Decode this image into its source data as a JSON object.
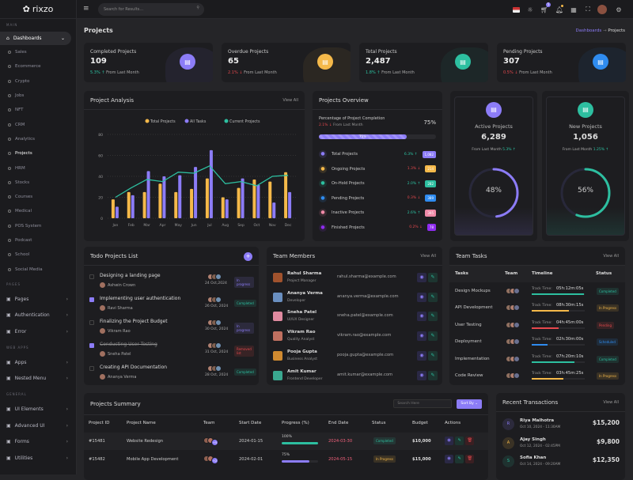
{
  "app": {
    "logo": "rixzo"
  },
  "topbar": {
    "search_placeholder": "Search for Results...",
    "cart_count": "5"
  },
  "sidebar": {
    "main_label": "MAIN",
    "dashboards": "Dashboards",
    "subitems": [
      "Sales",
      "Ecommerce",
      "Crypto",
      "Jobs",
      "NFT",
      "CRM",
      "Analytics",
      "Projects",
      "HRM",
      "Stocks",
      "Courses",
      "Medical",
      "POS System",
      "Podcast",
      "School",
      "Social Media"
    ],
    "active": "Projects",
    "sections": [
      {
        "label": "PAGES",
        "items": [
          {
            "label": "Pages",
            "icon": "file-icon"
          },
          {
            "label": "Authentication",
            "icon": "lock-icon"
          },
          {
            "label": "Error",
            "icon": "error-icon"
          }
        ]
      },
      {
        "label": "WEB APPS",
        "items": [
          {
            "label": "Apps",
            "icon": "grid-icon"
          },
          {
            "label": "Nested Menu",
            "icon": "gear-icon"
          }
        ]
      },
      {
        "label": "GENERAL",
        "items": [
          {
            "label": "UI Elements",
            "icon": "layout-icon"
          },
          {
            "label": "Advanced UI",
            "icon": "wand-icon"
          },
          {
            "label": "Forms",
            "icon": "form-icon"
          },
          {
            "label": "Utilities",
            "icon": "tool-icon"
          }
        ]
      }
    ]
  },
  "page": {
    "title": "Projects",
    "breadcrumb": [
      "Dashboards",
      "Projects"
    ]
  },
  "stats": [
    {
      "label": "Completed Projects",
      "value": "109",
      "change": "5.3%",
      "dir": "up",
      "note": "From Last Month",
      "color": "#8c7cf7"
    },
    {
      "label": "Overdue Projects",
      "value": "65",
      "change": "2.1%",
      "dir": "down",
      "note": "From Last Month",
      "color": "#f5b94a"
    },
    {
      "label": "Total Projects",
      "value": "2,487",
      "change": "1.8%",
      "dir": "up",
      "note": "From Last Month",
      "color": "#2dbfa0"
    },
    {
      "label": "Pending Projects",
      "value": "307",
      "change": "0.5%",
      "dir": "down",
      "note": "From Last Month",
      "color": "#2f8cf0"
    }
  ],
  "analysis": {
    "title": "Project Analysis",
    "view_all": "View All"
  },
  "chart_data": {
    "type": "bar",
    "categories": [
      "Jan",
      "Feb",
      "Mar",
      "Apr",
      "May",
      "Jun",
      "Jul",
      "Aug",
      "Sep",
      "Oct",
      "Nov",
      "Dec"
    ],
    "series": [
      {
        "name": "Total Projects",
        "type": "bar",
        "color": "#f5b94a",
        "values": [
          18,
          25,
          25,
          33,
          25,
          28,
          38,
          20,
          29,
          37,
          35,
          44
        ]
      },
      {
        "name": "All Tasks",
        "type": "bar",
        "color": "#8c7cf7",
        "values": [
          11,
          22,
          45,
          40,
          41,
          49,
          65,
          18,
          38,
          32,
          15,
          25
        ]
      },
      {
        "name": "Current Projects",
        "type": "line",
        "color": "#2dbfa0",
        "values": [
          20,
          29,
          37,
          35,
          44,
          43,
          50,
          33,
          35,
          31,
          40,
          41
        ]
      }
    ],
    "yticks": [
      "0",
      "20",
      "40",
      "60",
      "80"
    ],
    "ylim": [
      0,
      80
    ],
    "legend": "top",
    "grid": true
  },
  "overview": {
    "title": "Projects Overview",
    "completion_label": "Percentage of Project Completion",
    "completion": "75%",
    "completion_fraction": 0.75,
    "change": "2.1%",
    "note": "From Last Month",
    "rows": [
      {
        "label": "Total Projects",
        "change": "6.3%",
        "dir": "up",
        "badge": "1,082",
        "color": "#8c7cf7",
        "icon": "folder-icon"
      },
      {
        "label": "Ongoing Projects",
        "change": "1.3%",
        "dir": "down",
        "badge": "214",
        "color": "#f5b94a",
        "icon": "spinner-icon"
      },
      {
        "label": "On-Hold Projects",
        "change": "2.0%",
        "dir": "up",
        "badge": "282",
        "color": "#2dbfa0",
        "icon": "pause-icon"
      },
      {
        "label": "Pending Projects",
        "change": "0.3%",
        "dir": "down",
        "badge": "389",
        "color": "#2f8cf0",
        "icon": "clock-icon"
      },
      {
        "label": "Inactive Projects",
        "change": "2.6%",
        "dir": "up",
        "badge": "395",
        "color": "#f08aa8",
        "icon": "x-icon"
      },
      {
        "label": "Finished Projects",
        "change": "0.2%",
        "dir": "down",
        "badge": "78",
        "color": "#8f2cf0",
        "icon": "check-icon"
      }
    ]
  },
  "active": {
    "label": "Active Projects",
    "value": "6,289",
    "note": "From Last Month",
    "change": "5.3%",
    "percent": "48%",
    "fraction": 0.48,
    "color": "#8c7cf7"
  },
  "newp": {
    "label": "New Projects",
    "value": "1,056",
    "note": "From Last Month",
    "change": "1.25%",
    "percent": "56%",
    "fraction": 0.56,
    "color": "#2dbfa0"
  },
  "todo": {
    "title": "Todo Projects List",
    "add": "+",
    "items": [
      {
        "task": "Designing a landing page",
        "person": "Ashwin Crown",
        "date": "24 Oct,2024",
        "status": "In progress",
        "checked": false,
        "sc": "#8c7cf7"
      },
      {
        "task": "Implementing user authentication",
        "person": "Ravi Sharma",
        "date": "26 Oct, 2024",
        "status": "Completed",
        "checked": true,
        "sc": "#2dbfa0"
      },
      {
        "task": "Finalizing the Project Budget",
        "person": "Vikram Rao",
        "date": "30 Oct, 2024",
        "status": "In progress",
        "checked": false,
        "sc": "#8c7cf7"
      },
      {
        "task": "Conducting User Testing",
        "person": "Sneha Patel",
        "date": "31 Oct, 2024",
        "status": "Removed list",
        "checked": true,
        "sc": "#e5484d",
        "strike": true
      },
      {
        "task": "Creating API Documentation",
        "person": "Ananya Verma",
        "date": "28 Oct, 2024",
        "status": "Completed",
        "checked": false,
        "sc": "#2dbfa0"
      }
    ]
  },
  "members": {
    "title": "Team Members",
    "view_all": "View All",
    "items": [
      {
        "name": "Rahul Sharma",
        "role": "Project Manager",
        "email": "rahul.sharma@example.com"
      },
      {
        "name": "Ananya Verma",
        "role": "Developer",
        "email": "ananya.verma@example.com"
      },
      {
        "name": "Sneha Patel",
        "role": "UI/UX Designer",
        "email": "sneha.patel@example.com"
      },
      {
        "name": "Vikram Rao",
        "role": "Quality Analyst",
        "email": "vikram.rao@example.com"
      },
      {
        "name": "Pooja Gupta",
        "role": "Business Analyst",
        "email": "pooja.gupta@example.com"
      },
      {
        "name": "Amit Kumar",
        "role": "Frontend Developer",
        "email": "amit.kumar@example.com"
      }
    ]
  },
  "tasks": {
    "title": "Team Tasks",
    "view_all": "View All",
    "headers": [
      "Tasks",
      "Team",
      "Timeline",
      "Status"
    ],
    "track_label": "Track Time:",
    "items": [
      {
        "task": "Design Mockups",
        "time": "05h:12m:05s",
        "progress": 0.98,
        "color": "#2dbfa0",
        "status": "Completed"
      },
      {
        "task": "API Development",
        "time": "08h:30m:15s",
        "progress": 0.7,
        "color": "#f5b94a",
        "status": "In Progress"
      },
      {
        "task": "User Testing",
        "time": "04h:45m:00s",
        "progress": 0.5,
        "color": "#e5484d",
        "status": "Pending"
      },
      {
        "task": "Deployment",
        "time": "02h:30m:00s",
        "progress": 0.3,
        "color": "#2f8cf0",
        "status": "Scheduled"
      },
      {
        "task": "Implementation",
        "time": "07h:20m:10s",
        "progress": 0.8,
        "color": "#2dbfa0",
        "status": "Completed"
      },
      {
        "task": "Code Review",
        "time": "03h:45m:25s",
        "progress": 0.6,
        "color": "#f5b94a",
        "status": "In Progress"
      }
    ]
  },
  "summary": {
    "title": "Projects Summary",
    "search_placeholder": "Search Here",
    "sort": "Sort By",
    "headers": [
      "Project ID",
      "Project Name",
      "Team",
      "Start Date",
      "Progress (%)",
      "End Date",
      "Status",
      "Budget",
      "Actions"
    ],
    "rows": [
      {
        "id": "#15481",
        "name": "Website Redesign",
        "extra": "+5",
        "start": "2024-01-15",
        "progress": "100%",
        "fraction": 1.0,
        "pc": "#2dbfa0",
        "end": "2024-03-30",
        "status": "Completed",
        "sc": "#2dbfa0",
        "budget": "$10,000"
      },
      {
        "id": "#15482",
        "name": "Mobile App Development",
        "extra": "+2",
        "start": "2024-02-01",
        "progress": "75%",
        "fraction": 0.75,
        "pc": "#8c7cf7",
        "end": "2024-05-15",
        "status": "In Progress",
        "sc": "#f5b94a",
        "budget": "$15,000"
      }
    ]
  },
  "transactions": {
    "title": "Recent Transactions",
    "view_all": "View All",
    "items": [
      {
        "initial": "R",
        "name": "Riya Malhotra",
        "when": "Oct 10, 2024 - 11:30AM",
        "amount": "$15,200",
        "color": "#8c7cf7"
      },
      {
        "initial": "A",
        "name": "Ajay Singh",
        "when": "Oct 12, 2024 - 02:45PM",
        "amount": "$9,800",
        "color": "#f5b94a"
      },
      {
        "initial": "S",
        "name": "Sofia Khan",
        "when": "Oct 14, 2024 - 09:20AM",
        "amount": "$12,350",
        "color": "#2dbfa0"
      }
    ]
  }
}
